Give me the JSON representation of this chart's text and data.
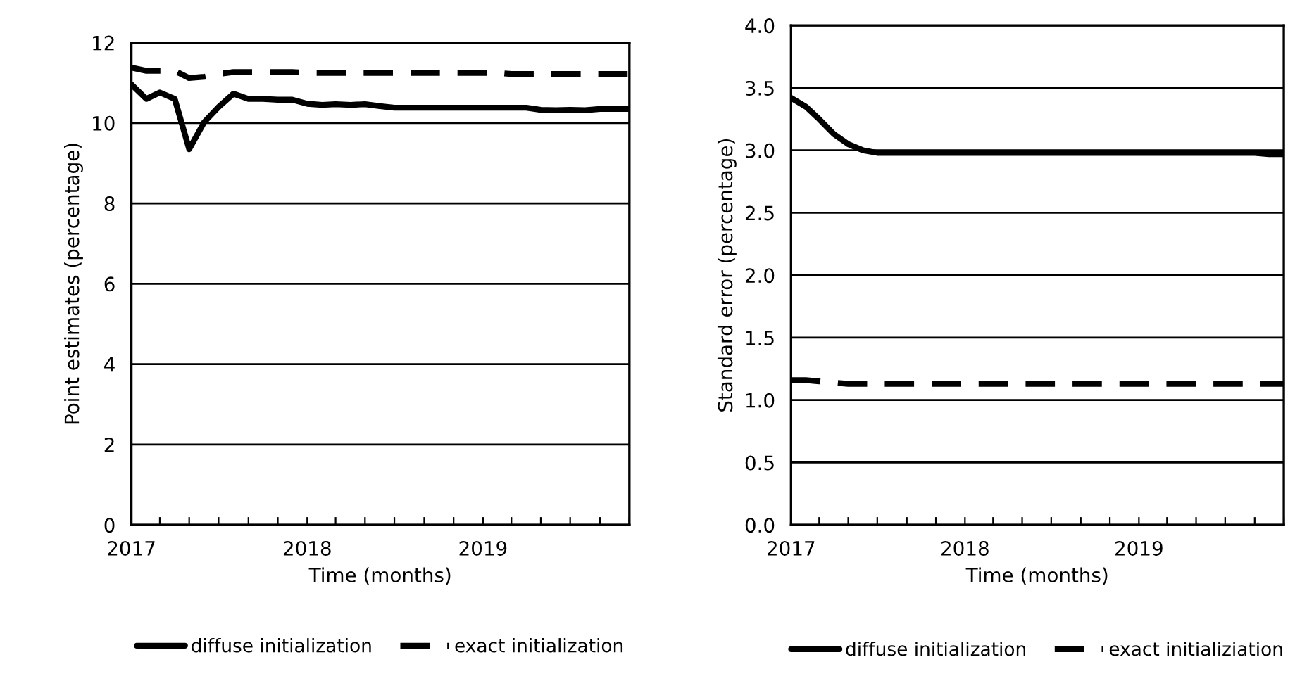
{
  "chart_data": [
    {
      "type": "line",
      "xlabel": "Time (months)",
      "ylabel": "Point estimates (percentage)",
      "x": [
        "2017-01",
        "2017-02",
        "2017-03",
        "2017-04",
        "2017-05",
        "2017-06",
        "2017-07",
        "2017-08",
        "2017-09",
        "2017-10",
        "2017-11",
        "2017-12",
        "2018-01",
        "2018-02",
        "2018-03",
        "2018-04",
        "2018-05",
        "2018-06",
        "2018-07",
        "2018-08",
        "2018-09",
        "2018-10",
        "2018-11",
        "2018-12",
        "2019-01",
        "2019-02",
        "2019-03",
        "2019-04",
        "2019-05",
        "2019-06",
        "2019-07",
        "2019-08",
        "2019-09",
        "2019-10",
        "2019-11"
      ],
      "series": [
        {
          "name": "diffuse initialization",
          "color": "#000000",
          "line_style": "solid",
          "values": [
            10.96,
            10.6,
            10.76,
            10.6,
            9.35,
            10.02,
            10.4,
            10.73,
            10.6,
            10.6,
            10.58,
            10.58,
            10.48,
            10.45,
            10.47,
            10.45,
            10.47,
            10.42,
            10.38,
            10.38,
            10.38,
            10.38,
            10.38,
            10.38,
            10.38,
            10.38,
            10.38,
            10.38,
            10.33,
            10.32,
            10.33,
            10.32,
            10.35,
            10.35,
            10.35
          ]
        },
        {
          "name": "exact initialization",
          "color": "#000000",
          "line_style": "dashed",
          "values": [
            11.38,
            11.3,
            11.3,
            11.3,
            11.12,
            11.15,
            11.22,
            11.27,
            11.27,
            11.27,
            11.27,
            11.27,
            11.25,
            11.25,
            11.25,
            11.25,
            11.25,
            11.25,
            11.25,
            11.25,
            11.25,
            11.25,
            11.25,
            11.25,
            11.25,
            11.25,
            11.22,
            11.22,
            11.22,
            11.22,
            11.22,
            11.22,
            11.22,
            11.22,
            11.22
          ]
        }
      ],
      "xlim": [
        "2017-01",
        "2019-11"
      ],
      "xticks": [
        {
          "value": "2017-01",
          "label": "2017"
        },
        {
          "value": "2017-03",
          "label": null
        },
        {
          "value": "2017-05",
          "label": null
        },
        {
          "value": "2017-07",
          "label": null
        },
        {
          "value": "2017-09",
          "label": null
        },
        {
          "value": "2017-11",
          "label": null
        },
        {
          "value": "2018-01",
          "label": "2018"
        },
        {
          "value": "2018-03",
          "label": null
        },
        {
          "value": "2018-05",
          "label": null
        },
        {
          "value": "2018-07",
          "label": null
        },
        {
          "value": "2018-09",
          "label": null
        },
        {
          "value": "2018-11",
          "label": null
        },
        {
          "value": "2019-01",
          "label": "2019"
        },
        {
          "value": "2019-03",
          "label": null
        },
        {
          "value": "2019-05",
          "label": null
        },
        {
          "value": "2019-07",
          "label": null
        },
        {
          "value": "2019-09",
          "label": null
        },
        {
          "value": "2019-11",
          "label": null
        }
      ],
      "ylim": [
        0,
        12
      ],
      "yticks": [
        0,
        2,
        4,
        6,
        8,
        10,
        12
      ],
      "grid": "y",
      "legend": "bottom",
      "marker": "none"
    },
    {
      "type": "line",
      "xlabel": "Time (months)",
      "ylabel": "Standard error (percentage)",
      "x": [
        "2017-01",
        "2017-02",
        "2017-03",
        "2017-04",
        "2017-05",
        "2017-06",
        "2017-07",
        "2017-08",
        "2017-09",
        "2017-10",
        "2017-11",
        "2017-12",
        "2018-01",
        "2018-02",
        "2018-03",
        "2018-04",
        "2018-05",
        "2018-06",
        "2018-07",
        "2018-08",
        "2018-09",
        "2018-10",
        "2018-11",
        "2018-12",
        "2019-01",
        "2019-02",
        "2019-03",
        "2019-04",
        "2019-05",
        "2019-06",
        "2019-07",
        "2019-08",
        "2019-09",
        "2019-10",
        "2019-11"
      ],
      "series": [
        {
          "name": "diffuse initialization",
          "color": "#000000",
          "line_style": "solid",
          "values": [
            3.42,
            3.35,
            3.25,
            3.13,
            3.05,
            3.0,
            2.98,
            2.98,
            2.98,
            2.98,
            2.98,
            2.98,
            2.98,
            2.98,
            2.98,
            2.98,
            2.98,
            2.98,
            2.98,
            2.98,
            2.98,
            2.98,
            2.98,
            2.98,
            2.98,
            2.98,
            2.98,
            2.98,
            2.98,
            2.98,
            2.98,
            2.98,
            2.98,
            2.97,
            2.97
          ]
        },
        {
          "name": "exact initializiation",
          "color": "#000000",
          "line_style": "dashed",
          "values": [
            1.16,
            1.16,
            1.15,
            1.14,
            1.13,
            1.13,
            1.13,
            1.13,
            1.13,
            1.13,
            1.13,
            1.13,
            1.13,
            1.13,
            1.13,
            1.13,
            1.13,
            1.13,
            1.13,
            1.13,
            1.13,
            1.13,
            1.13,
            1.13,
            1.13,
            1.13,
            1.13,
            1.13,
            1.13,
            1.13,
            1.13,
            1.13,
            1.13,
            1.13,
            1.13
          ]
        }
      ],
      "xlim": [
        "2017-01",
        "2019-11"
      ],
      "xticks": [
        {
          "value": "2017-01",
          "label": "2017"
        },
        {
          "value": "2017-03",
          "label": null
        },
        {
          "value": "2017-05",
          "label": null
        },
        {
          "value": "2017-07",
          "label": null
        },
        {
          "value": "2017-09",
          "label": null
        },
        {
          "value": "2017-11",
          "label": null
        },
        {
          "value": "2018-01",
          "label": "2018"
        },
        {
          "value": "2018-03",
          "label": null
        },
        {
          "value": "2018-05",
          "label": null
        },
        {
          "value": "2018-07",
          "label": null
        },
        {
          "value": "2018-09",
          "label": null
        },
        {
          "value": "2018-11",
          "label": null
        },
        {
          "value": "2019-01",
          "label": "2019"
        },
        {
          "value": "2019-03",
          "label": null
        },
        {
          "value": "2019-05",
          "label": null
        },
        {
          "value": "2019-07",
          "label": null
        },
        {
          "value": "2019-09",
          "label": null
        },
        {
          "value": "2019-11",
          "label": null
        }
      ],
      "ylim": [
        0,
        4
      ],
      "yticks": [
        {
          "value": 0,
          "label": "0.0"
        },
        {
          "value": 0.5,
          "label": "0.5"
        },
        {
          "value": 1,
          "label": "1.0"
        },
        {
          "value": 1.5,
          "label": "1.5"
        },
        {
          "value": 2,
          "label": "2.0"
        },
        {
          "value": 2.5,
          "label": "2.5"
        },
        {
          "value": 3,
          "label": "3.0"
        },
        {
          "value": 3.5,
          "label": "3.5"
        },
        {
          "value": 4,
          "label": "4.0"
        }
      ],
      "grid": "y",
      "legend": "bottom",
      "marker": "none"
    }
  ]
}
